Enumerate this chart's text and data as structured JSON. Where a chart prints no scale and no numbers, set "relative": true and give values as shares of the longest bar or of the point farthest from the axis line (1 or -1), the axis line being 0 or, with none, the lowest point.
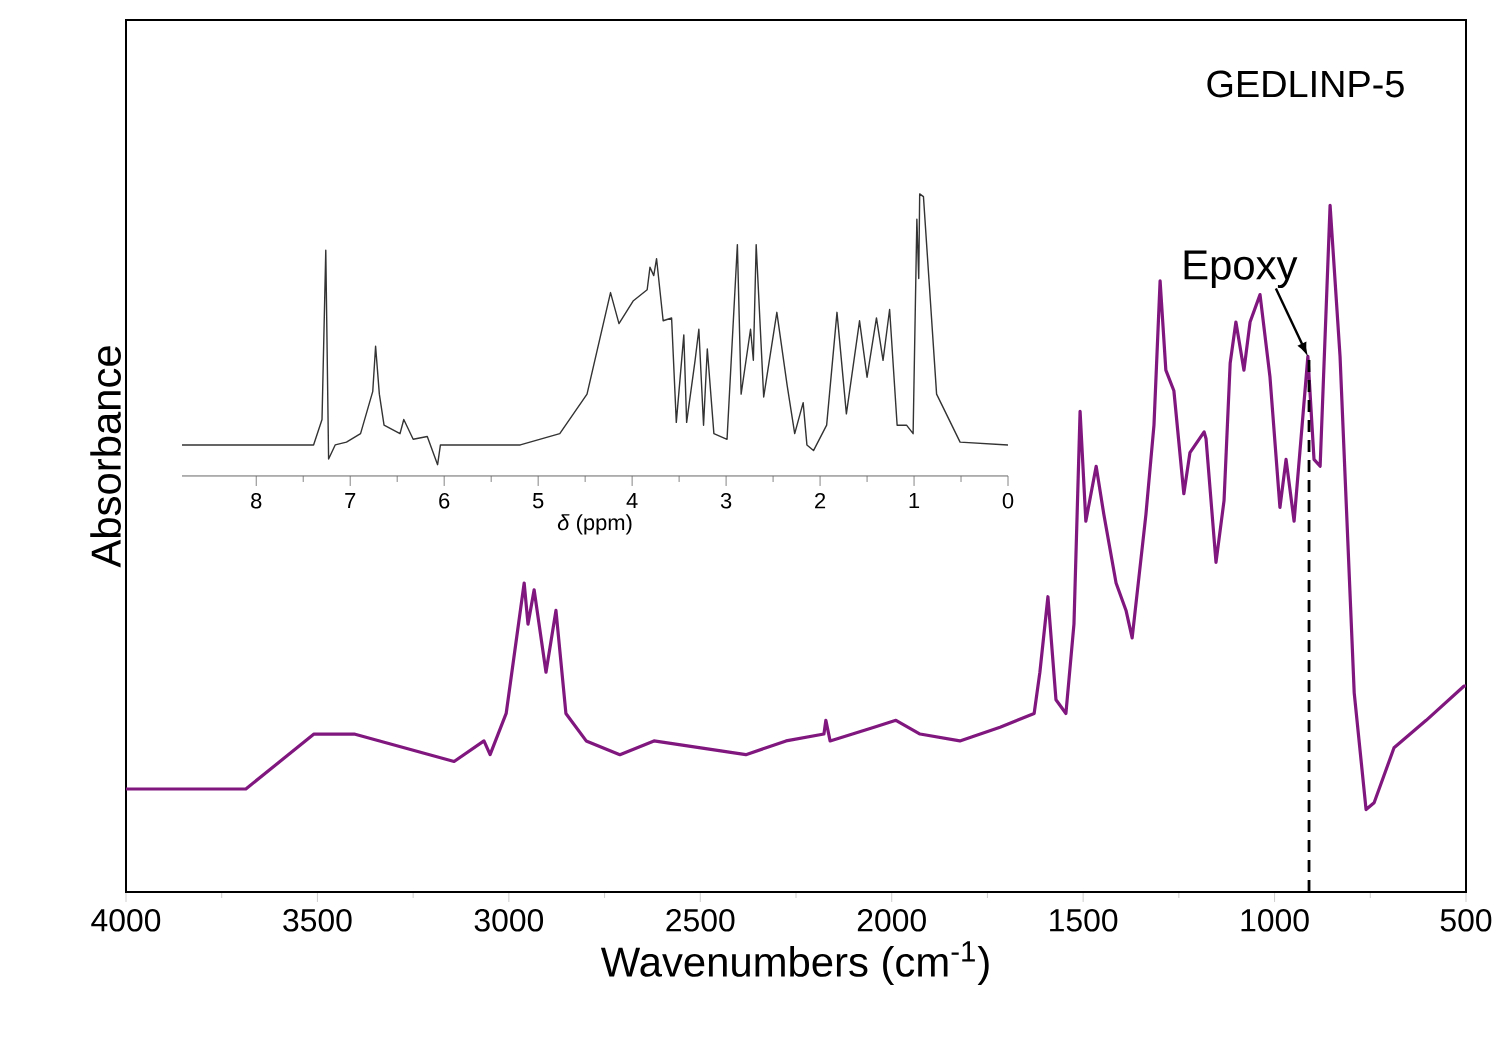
{
  "chart_data": [
    {
      "type": "line",
      "relative": true,
      "xlabel": "Wavenumbers (cm$^{-1}$)",
      "ylabel": "Absorbance",
      "tick_labels": "x",
      "xlim": [
        4000,
        500
      ],
      "xticks": [
        4000,
        3500,
        3000,
        2500,
        2000,
        1500,
        1000,
        500
      ],
      "annotations": [
        "GEDLINP-5",
        {
          "text": "Epoxy",
          "x": 913,
          "y": 0.78
        }
      ],
      "ref_lines": [
        {
          "axis": "x",
          "value": 910,
          "line_style": "dashed",
          "color": "#000000"
        }
      ],
      "series": [
        {
          "color": "#80177f",
          "x": [
            4000,
            3687,
            3509,
            3404,
            3143,
            3065,
            3049,
            3007,
            2960,
            2950,
            2934,
            2903,
            2877,
            2851,
            2798,
            2710,
            2621,
            2381,
            2328,
            2276,
            2177,
            2172,
            2161,
            2046,
            1989,
            1926,
            1822,
            1717,
            1628,
            1613,
            1592,
            1571,
            1545,
            1524,
            1508,
            1493,
            1466,
            1446,
            1414,
            1388,
            1372,
            1336,
            1315,
            1299,
            1284,
            1263,
            1237,
            1221,
            1184,
            1179,
            1153,
            1132,
            1116,
            1101,
            1080,
            1064,
            1038,
            1012,
            986,
            970,
            949,
            928,
            913,
            897,
            881,
            855,
            829,
            792,
            761,
            740,
            688,
            604,
            505,
            500
          ],
          "values": [
            0.15,
            0.15,
            0.23,
            0.23,
            0.19,
            0.22,
            0.2,
            0.26,
            0.45,
            0.39,
            0.44,
            0.32,
            0.41,
            0.26,
            0.22,
            0.2,
            0.22,
            0.2,
            0.21,
            0.22,
            0.23,
            0.25,
            0.22,
            0.24,
            0.25,
            0.23,
            0.22,
            0.24,
            0.26,
            0.32,
            0.43,
            0.28,
            0.26,
            0.39,
            0.7,
            0.54,
            0.62,
            0.55,
            0.45,
            0.41,
            0.37,
            0.55,
            0.68,
            0.89,
            0.76,
            0.73,
            0.58,
            0.64,
            0.67,
            0.66,
            0.48,
            0.57,
            0.77,
            0.83,
            0.76,
            0.83,
            0.87,
            0.75,
            0.56,
            0.63,
            0.54,
            0.68,
            0.78,
            0.63,
            0.62,
            1.0,
            0.78,
            0.29,
            0.12,
            0.13,
            0.21,
            0.25,
            0.3,
            0.3
          ]
        }
      ]
    },
    {
      "type": "line",
      "relative": true,
      "xlabel": "*δ* (ppm)",
      "tick_labels": "x",
      "xlim": [
        8.79,
        0
      ],
      "xticks": [
        8,
        7,
        6,
        5,
        4,
        3,
        2,
        1,
        0
      ],
      "series": [
        {
          "color": "#333333",
          "x": [
            8.79,
            7.39,
            7.3,
            7.26,
            7.23,
            7.16,
            7.04,
            6.89,
            6.76,
            6.73,
            6.69,
            6.64,
            6.47,
            6.43,
            6.33,
            6.18,
            6.07,
            6.04,
            5.19,
            4.77,
            4.48,
            4.23,
            4.14,
            3.99,
            3.84,
            3.81,
            3.77,
            3.74,
            3.67,
            3.58,
            3.53,
            3.45,
            3.42,
            3.33,
            3.29,
            3.24,
            3.2,
            3.13,
            2.99,
            2.88,
            2.84,
            2.74,
            2.71,
            2.68,
            2.6,
            2.46,
            2.35,
            2.27,
            2.18,
            2.14,
            2.07,
            1.93,
            1.82,
            1.72,
            1.58,
            1.5,
            1.4,
            1.33,
            1.26,
            1.18,
            1.08,
            1.01,
            0.97,
            0.95,
            0.94,
            0.9,
            0.76,
            0.51,
            0.0
          ],
          "values": [
            0.11,
            0.11,
            0.2,
            0.8,
            0.06,
            0.11,
            0.12,
            0.15,
            0.3,
            0.46,
            0.29,
            0.18,
            0.15,
            0.2,
            0.13,
            0.14,
            0.04,
            0.11,
            0.11,
            0.15,
            0.29,
            0.65,
            0.54,
            0.62,
            0.66,
            0.74,
            0.71,
            0.77,
            0.55,
            0.56,
            0.19,
            0.5,
            0.19,
            0.41,
            0.52,
            0.18,
            0.45,
            0.15,
            0.13,
            0.82,
            0.29,
            0.52,
            0.41,
            0.82,
            0.28,
            0.58,
            0.32,
            0.15,
            0.26,
            0.11,
            0.09,
            0.18,
            0.58,
            0.22,
            0.55,
            0.35,
            0.56,
            0.41,
            0.59,
            0.18,
            0.18,
            0.15,
            0.91,
            0.7,
            1.0,
            0.99,
            0.29,
            0.12,
            0.11
          ]
        }
      ]
    }
  ]
}
